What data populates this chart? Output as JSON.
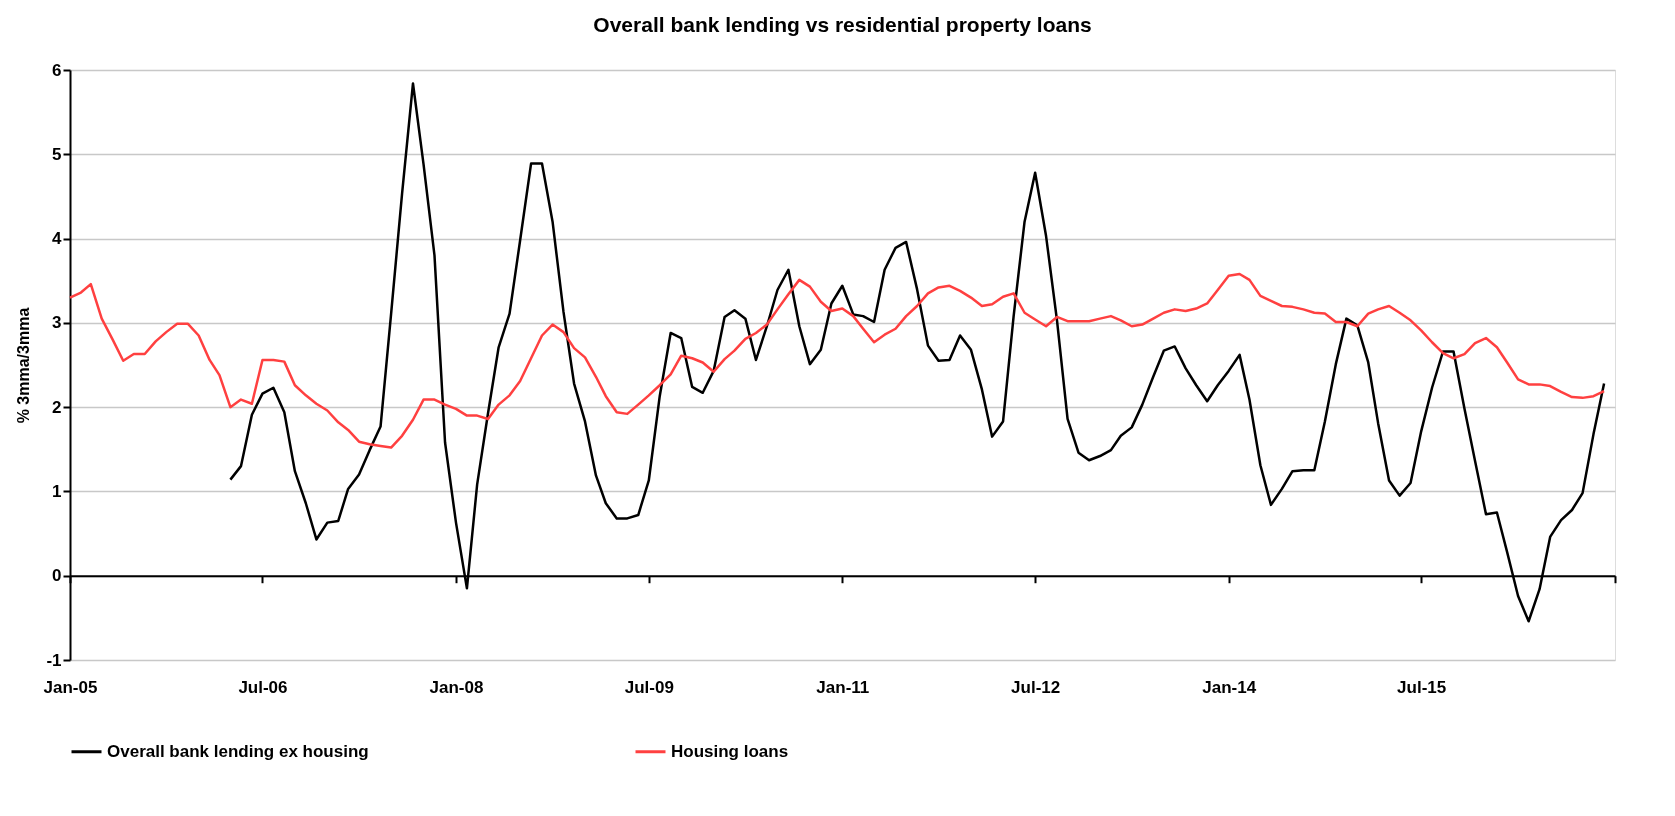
{
  "chart_data": {
    "type": "line",
    "title": "Overall bank lending vs residential property loans",
    "ylabel": "% 3mma/3mma",
    "x": [
      "2005-01",
      "2005-02",
      "2005-03",
      "2005-04",
      "2005-05",
      "2005-06",
      "2005-07",
      "2005-08",
      "2005-09",
      "2005-10",
      "2005-11",
      "2005-12",
      "2006-01",
      "2006-02",
      "2006-03",
      "2006-04",
      "2006-05",
      "2006-06",
      "2006-07",
      "2006-08",
      "2006-09",
      "2006-10",
      "2006-11",
      "2006-12",
      "2007-01",
      "2007-02",
      "2007-03",
      "2007-04",
      "2007-05",
      "2007-06",
      "2007-07",
      "2007-08",
      "2007-09",
      "2007-10",
      "2007-11",
      "2007-12",
      "2008-01",
      "2008-02",
      "2008-03",
      "2008-04",
      "2008-05",
      "2008-06",
      "2008-07",
      "2008-08",
      "2008-09",
      "2008-10",
      "2008-11",
      "2008-12",
      "2009-01",
      "2009-02",
      "2009-03",
      "2009-04",
      "2009-05",
      "2009-06",
      "2009-07",
      "2009-08",
      "2009-09",
      "2009-10",
      "2009-11",
      "2009-12",
      "2010-01",
      "2010-02",
      "2010-03",
      "2010-04",
      "2010-05",
      "2010-06",
      "2010-07",
      "2010-08",
      "2010-09",
      "2010-10",
      "2010-11",
      "2010-12",
      "2011-01",
      "2011-02",
      "2011-03",
      "2011-04",
      "2011-05",
      "2011-06",
      "2011-07",
      "2011-08",
      "2011-09",
      "2011-10",
      "2011-11",
      "2011-12",
      "2012-01",
      "2012-02",
      "2012-03",
      "2012-04",
      "2012-05",
      "2012-06",
      "2012-07",
      "2012-08",
      "2012-09",
      "2012-10",
      "2012-11",
      "2012-12",
      "2013-01",
      "2013-02",
      "2013-03",
      "2013-04",
      "2013-05",
      "2013-06",
      "2013-07",
      "2013-08",
      "2013-09",
      "2013-10",
      "2013-11",
      "2013-12",
      "2014-01",
      "2014-02",
      "2014-03",
      "2014-04",
      "2014-05",
      "2014-06",
      "2014-07",
      "2014-08",
      "2014-09",
      "2014-10",
      "2014-11",
      "2014-12",
      "2015-01",
      "2015-02",
      "2015-03",
      "2015-04",
      "2015-05",
      "2015-06",
      "2015-07",
      "2015-08",
      "2015-09",
      "2015-10",
      "2015-11",
      "2015-12",
      "2016-01",
      "2016-02",
      "2016-03",
      "2016-04",
      "2016-05",
      "2016-06",
      "2016-07",
      "2016-08",
      "2016-09",
      "2016-10",
      "2016-11",
      "2016-12"
    ],
    "series": [
      {
        "name": "Overall bank lending ex housing",
        "color": "#000000",
        "values": [
          null,
          null,
          null,
          null,
          null,
          null,
          null,
          null,
          null,
          null,
          null,
          null,
          null,
          null,
          null,
          1.14,
          1.3,
          1.91,
          2.16,
          2.23,
          1.94,
          1.24,
          0.86,
          0.43,
          0.63,
          0.65,
          1.03,
          1.2,
          1.49,
          1.77,
          3.11,
          4.53,
          5.84,
          4.88,
          3.8,
          1.58,
          0.63,
          -0.15,
          1.08,
          1.93,
          2.71,
          3.11,
          3.98,
          4.89,
          4.89,
          4.2,
          3.13,
          2.28,
          1.83,
          1.19,
          0.86,
          0.68,
          0.68,
          0.72,
          1.13,
          2.13,
          2.88,
          2.82,
          2.24,
          2.17,
          2.43,
          3.07,
          3.15,
          3.05,
          2.56,
          2.96,
          3.39,
          3.63,
          2.96,
          2.51,
          2.68,
          3.23,
          3.44,
          3.1,
          3.08,
          3.01,
          3.63,
          3.89,
          3.96,
          3.4,
          2.73,
          2.55,
          2.56,
          2.85,
          2.68,
          2.21,
          1.65,
          1.83,
          3.08,
          4.2,
          4.78,
          4.03,
          3.03,
          1.86,
          1.46,
          1.37,
          1.42,
          1.49,
          1.66,
          1.76,
          2.03,
          2.36,
          2.67,
          2.72,
          2.46,
          2.26,
          2.07,
          2.26,
          2.43,
          2.62,
          2.09,
          1.31,
          0.84,
          1.03,
          1.24,
          1.25,
          1.25,
          1.83,
          2.51,
          3.05,
          2.97,
          2.53,
          1.81,
          1.13,
          0.95,
          1.1,
          1.71,
          2.23,
          2.66,
          2.66,
          1.98,
          1.36,
          0.73,
          0.75,
          0.28,
          -0.24,
          -0.54,
          -0.16,
          0.46,
          0.66,
          0.78,
          0.98,
          1.68,
          2.28
        ]
      },
      {
        "name": "Housing loans",
        "color": "#ff4040",
        "values": [
          3.3,
          3.36,
          3.46,
          3.05,
          2.81,
          2.55,
          2.63,
          2.63,
          2.78,
          2.89,
          2.99,
          2.99,
          2.85,
          2.56,
          2.38,
          2.0,
          2.09,
          2.04,
          2.56,
          2.56,
          2.54,
          2.26,
          2.14,
          2.04,
          1.96,
          1.82,
          1.73,
          1.59,
          1.56,
          1.54,
          1.52,
          1.66,
          1.85,
          2.09,
          2.09,
          2.03,
          1.98,
          1.9,
          1.9,
          1.86,
          2.03,
          2.14,
          2.31,
          2.58,
          2.85,
          2.98,
          2.89,
          2.7,
          2.59,
          2.36,
          2.13,
          1.94,
          1.92,
          2.03,
          2.14,
          2.26,
          2.39,
          2.61,
          2.58,
          2.53,
          2.42,
          2.57,
          2.67,
          2.81,
          2.88,
          2.98,
          3.16,
          3.34,
          3.51,
          3.43,
          3.25,
          3.14,
          3.17,
          3.08,
          2.93,
          2.77,
          2.86,
          2.93,
          3.08,
          3.2,
          3.35,
          3.42,
          3.44,
          3.38,
          3.3,
          3.2,
          3.22,
          3.31,
          3.35,
          3.12,
          3.04,
          2.96,
          3.07,
          3.02,
          3.02,
          3.02,
          3.05,
          3.08,
          3.03,
          2.96,
          2.98,
          3.05,
          3.12,
          3.16,
          3.14,
          3.17,
          3.23,
          3.39,
          3.56,
          3.58,
          3.51,
          3.32,
          3.26,
          3.2,
          3.19,
          3.16,
          3.12,
          3.11,
          3.01,
          3.01,
          2.96,
          3.11,
          3.16,
          3.2,
          3.12,
          3.03,
          2.91,
          2.77,
          2.64,
          2.58,
          2.63,
          2.76,
          2.82,
          2.71,
          2.53,
          2.33,
          2.27,
          2.27,
          2.25,
          2.18,
          2.12,
          2.11,
          2.13,
          2.19
        ]
      }
    ],
    "xlim": [
      "2005-01",
      "2017-01"
    ],
    "xticks": [
      {
        "value": "2005-01",
        "label": "Jan-05"
      },
      {
        "value": "2006-07",
        "label": "Jul-06"
      },
      {
        "value": "2008-01",
        "label": "Jan-08"
      },
      {
        "value": "2009-07",
        "label": "Jul-09"
      },
      {
        "value": "2011-01",
        "label": "Jan-11"
      },
      {
        "value": "2012-07",
        "label": "Jul-12"
      },
      {
        "value": "2014-01",
        "label": "Jan-14"
      },
      {
        "value": "2015-07",
        "label": "Jul-15"
      },
      {
        "value": "2017-01",
        "label": null
      }
    ],
    "ylim": [
      -1,
      6
    ],
    "yticks": [
      -1,
      0,
      1,
      2,
      3,
      4,
      5,
      6
    ],
    "grid": "y",
    "legend": "bottom",
    "marker": "none",
    "line_style": "solid"
  }
}
